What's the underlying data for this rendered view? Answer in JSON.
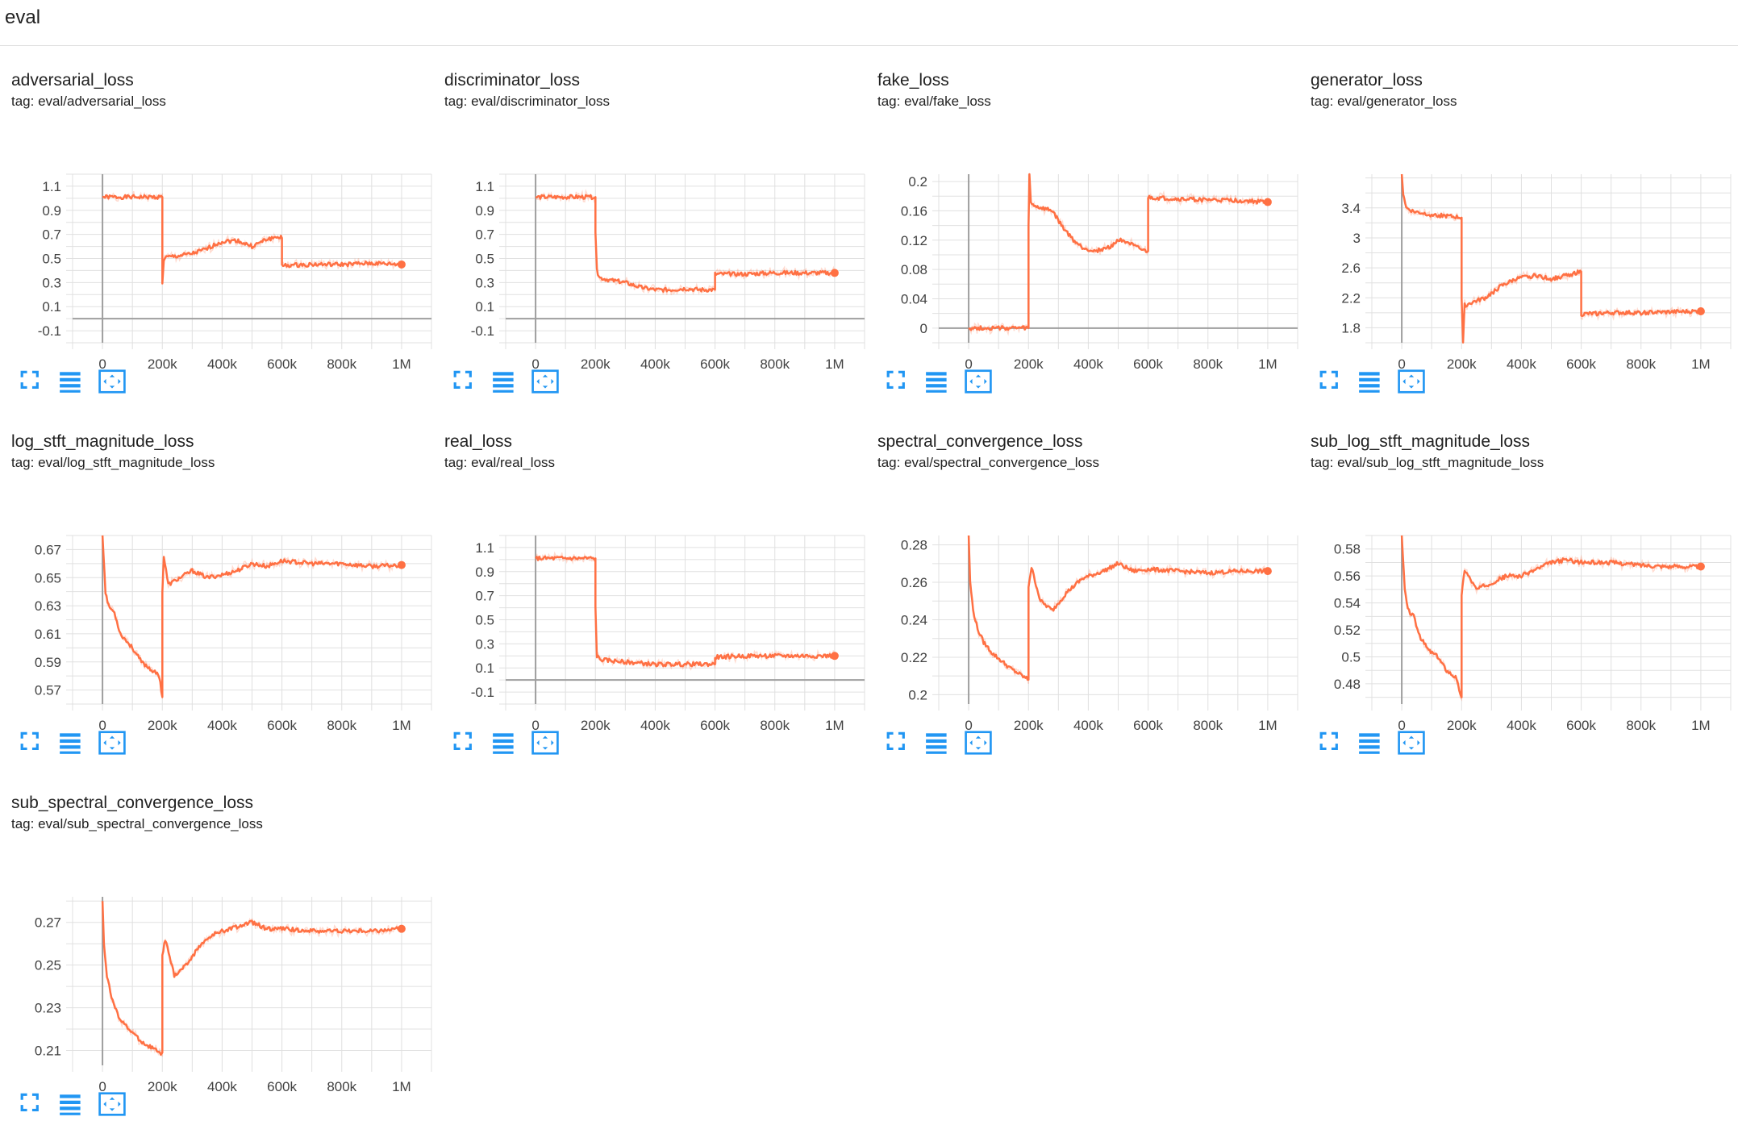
{
  "header": {
    "title": "eval"
  },
  "icons": {
    "fit": "fit-to-data-icon",
    "data_table": "data-table-icon",
    "expand": "expand-icon",
    "color": "#2196f3"
  },
  "series_color": "#ff7043",
  "chart_data": [
    {
      "type": "line",
      "title": "adversarial_loss",
      "tag": "tag: eval/adversarial_loss",
      "xlim": [
        -100000,
        1100000
      ],
      "ylim": [
        -0.2,
        1.2
      ],
      "yticks": [
        -0.1,
        0.1,
        0.3,
        0.5,
        0.7,
        0.9,
        1.1
      ],
      "ytick_labels": [
        "-0.1",
        "0.1",
        "0.3",
        "0.5",
        "0.7",
        "0.9",
        "1.1"
      ],
      "xticks": [
        0,
        200000,
        400000,
        600000,
        800000,
        1000000
      ],
      "xtick_labels": [
        "0",
        "200k",
        "400k",
        "600k",
        "800k",
        "1M"
      ],
      "series": [
        {
          "name": "eval/adversarial_loss",
          "x": [
            0,
            200000,
            200000,
            205000,
            215000,
            250000,
            300000,
            350000,
            380000,
            400000,
            450000,
            500000,
            550000,
            590000,
            600000,
            600000,
            700000,
            800000,
            900000,
            1000000
          ],
          "y": [
            1.01,
            1.01,
            0.3,
            0.49,
            0.51,
            0.52,
            0.54,
            0.58,
            0.62,
            0.64,
            0.65,
            0.6,
            0.66,
            0.68,
            0.67,
            0.44,
            0.45,
            0.45,
            0.46,
            0.45
          ]
        }
      ]
    },
    {
      "type": "line",
      "title": "discriminator_loss",
      "tag": "tag: eval/discriminator_loss",
      "xlim": [
        -100000,
        1100000
      ],
      "ylim": [
        -0.2,
        1.2
      ],
      "yticks": [
        -0.1,
        0.1,
        0.3,
        0.5,
        0.7,
        0.9,
        1.1
      ],
      "ytick_labels": [
        "-0.1",
        "0.1",
        "0.3",
        "0.5",
        "0.7",
        "0.9",
        "1.1"
      ],
      "xticks": [
        0,
        200000,
        400000,
        600000,
        800000,
        1000000
      ],
      "xtick_labels": [
        "0",
        "200k",
        "400k",
        "600k",
        "800k",
        "1M"
      ],
      "series": [
        {
          "name": "eval/discriminator_loss",
          "x": [
            0,
            200000,
            200000,
            205000,
            215000,
            250000,
            300000,
            350000,
            400000,
            450000,
            500000,
            550000,
            600000,
            600000,
            700000,
            800000,
            900000,
            1000000
          ],
          "y": [
            1.01,
            1.01,
            0.7,
            0.4,
            0.34,
            0.32,
            0.3,
            0.26,
            0.24,
            0.24,
            0.25,
            0.24,
            0.24,
            0.37,
            0.37,
            0.38,
            0.38,
            0.38
          ]
        }
      ]
    },
    {
      "type": "line",
      "title": "fake_loss",
      "tag": "tag: eval/fake_loss",
      "xlim": [
        -100000,
        1100000
      ],
      "ylim": [
        -0.02,
        0.21
      ],
      "yticks": [
        0,
        0.04,
        0.08,
        0.12,
        0.16,
        0.2
      ],
      "ytick_labels": [
        "0",
        "0.04",
        "0.08",
        "0.12",
        "0.16",
        "0.2"
      ],
      "xticks": [
        0,
        200000,
        400000,
        600000,
        800000,
        1000000
      ],
      "xtick_labels": [
        "0",
        "200k",
        "400k",
        "600k",
        "800k",
        "1M"
      ],
      "series": [
        {
          "name": "eval/fake_loss",
          "x": [
            0,
            200000,
            200000,
            203000,
            208000,
            230000,
            280000,
            310000,
            350000,
            380000,
            420000,
            470000,
            500000,
            520000,
            560000,
            590000,
            600000,
            600000,
            700000,
            800000,
            900000,
            1000000
          ],
          "y": [
            0,
            0,
            0.14,
            0.21,
            0.17,
            0.165,
            0.16,
            0.14,
            0.12,
            0.11,
            0.105,
            0.11,
            0.12,
            0.12,
            0.11,
            0.105,
            0.105,
            0.178,
            0.176,
            0.175,
            0.174,
            0.172
          ]
        }
      ]
    },
    {
      "type": "line",
      "title": "generator_loss",
      "tag": "tag: eval/generator_loss",
      "xlim": [
        -100000,
        1100000
      ],
      "ylim": [
        1.6,
        3.85
      ],
      "yticks": [
        1.8,
        2.2,
        2.6,
        3,
        3.4
      ],
      "ytick_labels": [
        "1.8",
        "2.2",
        "2.6",
        "3",
        "3.4"
      ],
      "xticks": [
        0,
        200000,
        400000,
        600000,
        800000,
        1000000
      ],
      "xtick_labels": [
        "0",
        "200k",
        "400k",
        "600k",
        "800k",
        "1M"
      ],
      "series": [
        {
          "name": "eval/generator_loss",
          "x": [
            0,
            5000,
            15000,
            40000,
            100000,
            200000,
            200000,
            205000,
            210000,
            230000,
            280000,
            330000,
            380000,
            450000,
            500000,
            550000,
            600000,
            600000,
            700000,
            800000,
            900000,
            1000000
          ],
          "y": [
            3.85,
            3.6,
            3.4,
            3.35,
            3.31,
            3.27,
            2.2,
            1.6,
            2.1,
            2.13,
            2.2,
            2.35,
            2.45,
            2.5,
            2.45,
            2.5,
            2.55,
            1.98,
            2.0,
            2.0,
            2.01,
            2.02
          ]
        }
      ]
    },
    {
      "type": "line",
      "title": "log_stft_magnitude_loss",
      "tag": "tag: eval/log_stft_magnitude_loss",
      "xlim": [
        -100000,
        1100000
      ],
      "ylim": [
        0.56,
        0.68
      ],
      "yticks": [
        0.57,
        0.59,
        0.61,
        0.63,
        0.65,
        0.67
      ],
      "ytick_labels": [
        "0.57",
        "0.59",
        "0.61",
        "0.63",
        "0.65",
        "0.67"
      ],
      "xticks": [
        0,
        200000,
        400000,
        600000,
        800000,
        1000000
      ],
      "xtick_labels": [
        "0",
        "200k",
        "400k",
        "600k",
        "800k",
        "1M"
      ],
      "series": [
        {
          "name": "eval/log_stft_magnitude_loss",
          "x": [
            0,
            10000,
            20000,
            40000,
            60000,
            80000,
            100000,
            130000,
            160000,
            190000,
            200000,
            200000,
            205000,
            220000,
            260000,
            300000,
            350000,
            400000,
            450000,
            500000,
            550000,
            600000,
            700000,
            800000,
            900000,
            1000000
          ],
          "y": [
            0.68,
            0.64,
            0.63,
            0.625,
            0.61,
            0.605,
            0.6,
            0.59,
            0.585,
            0.58,
            0.565,
            0.64,
            0.665,
            0.645,
            0.65,
            0.655,
            0.65,
            0.652,
            0.655,
            0.66,
            0.658,
            0.662,
            0.66,
            0.66,
            0.658,
            0.659
          ]
        }
      ]
    },
    {
      "type": "line",
      "title": "real_loss",
      "tag": "tag: eval/real_loss",
      "xlim": [
        -100000,
        1100000
      ],
      "ylim": [
        -0.2,
        1.2
      ],
      "yticks": [
        -0.1,
        0.1,
        0.3,
        0.5,
        0.7,
        0.9,
        1.1
      ],
      "ytick_labels": [
        "-0.1",
        "0.1",
        "0.3",
        "0.5",
        "0.7",
        "0.9",
        "1.1"
      ],
      "xticks": [
        0,
        200000,
        400000,
        600000,
        800000,
        1000000
      ],
      "xtick_labels": [
        "0",
        "200k",
        "400k",
        "600k",
        "800k",
        "1M"
      ],
      "series": [
        {
          "name": "eval/real_loss",
          "x": [
            0,
            200000,
            200000,
            205000,
            215000,
            250000,
            300000,
            350000,
            400000,
            450000,
            500000,
            550000,
            600000,
            600000,
            700000,
            800000,
            900000,
            1000000
          ],
          "y": [
            1.01,
            1.01,
            0.6,
            0.2,
            0.17,
            0.16,
            0.15,
            0.14,
            0.13,
            0.13,
            0.13,
            0.13,
            0.13,
            0.19,
            0.2,
            0.2,
            0.2,
            0.2
          ]
        }
      ]
    },
    {
      "type": "line",
      "title": "spectral_convergence_loss",
      "tag": "tag: eval/spectral_convergence_loss",
      "xlim": [
        -100000,
        1100000
      ],
      "ylim": [
        0.195,
        0.285
      ],
      "yticks": [
        0.2,
        0.22,
        0.24,
        0.26,
        0.28
      ],
      "ytick_labels": [
        "0.2",
        "0.22",
        "0.24",
        "0.26",
        "0.28"
      ],
      "xticks": [
        0,
        200000,
        400000,
        600000,
        800000,
        1000000
      ],
      "xtick_labels": [
        "0",
        "200k",
        "400k",
        "600k",
        "800k",
        "1M"
      ],
      "series": [
        {
          "name": "eval/spectral_convergence_loss",
          "x": [
            0,
            5000,
            15000,
            30000,
            50000,
            80000,
            110000,
            140000,
            170000,
            190000,
            200000,
            200000,
            210000,
            240000,
            280000,
            330000,
            380000,
            450000,
            500000,
            550000,
            600000,
            700000,
            800000,
            900000,
            1000000
          ],
          "y": [
            0.285,
            0.26,
            0.245,
            0.235,
            0.228,
            0.222,
            0.218,
            0.214,
            0.211,
            0.209,
            0.208,
            0.258,
            0.268,
            0.25,
            0.245,
            0.255,
            0.262,
            0.266,
            0.27,
            0.266,
            0.267,
            0.266,
            0.265,
            0.266,
            0.266
          ]
        }
      ]
    },
    {
      "type": "line",
      "title": "sub_log_stft_magnitude_loss",
      "tag": "tag: eval/sub_log_stft_magnitude_loss",
      "xlim": [
        -100000,
        1100000
      ],
      "ylim": [
        0.465,
        0.59
      ],
      "yticks": [
        0.48,
        0.5,
        0.52,
        0.54,
        0.56,
        0.58
      ],
      "ytick_labels": [
        "0.48",
        "0.5",
        "0.52",
        "0.54",
        "0.56",
        "0.58"
      ],
      "xticks": [
        0,
        200000,
        400000,
        600000,
        800000,
        1000000
      ],
      "xtick_labels": [
        "0",
        "200k",
        "400k",
        "600k",
        "800k",
        "1M"
      ],
      "series": [
        {
          "name": "eval/sub_log_stft_magnitude_loss",
          "x": [
            0,
            10000,
            20000,
            40000,
            60000,
            90000,
            120000,
            150000,
            180000,
            200000,
            200000,
            210000,
            250000,
            300000,
            350000,
            400000,
            450000,
            500000,
            550000,
            600000,
            700000,
            800000,
            900000,
            1000000
          ],
          "y": [
            0.59,
            0.55,
            0.535,
            0.53,
            0.515,
            0.505,
            0.5,
            0.49,
            0.485,
            0.47,
            0.545,
            0.565,
            0.55,
            0.555,
            0.56,
            0.56,
            0.565,
            0.57,
            0.572,
            0.57,
            0.57,
            0.568,
            0.567,
            0.567
          ]
        }
      ]
    },
    {
      "type": "line",
      "title": "sub_spectral_convergence_loss",
      "tag": "tag: eval/sub_spectral_convergence_loss",
      "xlim": [
        -100000,
        1100000
      ],
      "ylim": [
        0.203,
        0.282
      ],
      "yticks": [
        0.21,
        0.23,
        0.25,
        0.27
      ],
      "ytick_labels": [
        "0.21",
        "0.23",
        "0.25",
        "0.27"
      ],
      "xticks": [
        0,
        200000,
        400000,
        600000,
        800000,
        1000000
      ],
      "xtick_labels": [
        "0",
        "200k",
        "400k",
        "600k",
        "800k",
        "1M"
      ],
      "series": [
        {
          "name": "eval/sub_spectral_convergence_loss",
          "x": [
            0,
            5000,
            15000,
            30000,
            50000,
            80000,
            110000,
            140000,
            170000,
            195000,
            200000,
            200000,
            210000,
            240000,
            280000,
            330000,
            380000,
            450000,
            500000,
            550000,
            600000,
            700000,
            800000,
            900000,
            1000000
          ],
          "y": [
            0.28,
            0.26,
            0.245,
            0.235,
            0.227,
            0.221,
            0.217,
            0.213,
            0.211,
            0.208,
            0.209,
            0.255,
            0.262,
            0.245,
            0.25,
            0.26,
            0.265,
            0.268,
            0.27,
            0.267,
            0.267,
            0.266,
            0.266,
            0.266,
            0.267
          ]
        }
      ]
    }
  ]
}
